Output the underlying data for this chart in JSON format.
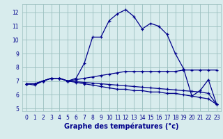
{
  "xlabel": "Graphe des températures (°c)",
  "hours": [
    0,
    1,
    2,
    3,
    4,
    5,
    6,
    7,
    8,
    9,
    10,
    11,
    12,
    13,
    14,
    15,
    16,
    17,
    18,
    19,
    20,
    21,
    22,
    23
  ],
  "temp_main": [
    6.8,
    6.7,
    7.0,
    7.2,
    7.2,
    7.0,
    7.2,
    8.3,
    10.2,
    10.2,
    11.4,
    11.9,
    12.2,
    11.7,
    10.8,
    11.2,
    11.0,
    10.4,
    9.0,
    7.9,
    5.9,
    6.3,
    7.1,
    5.3
  ],
  "temp_line2": [
    6.8,
    6.8,
    7.0,
    7.2,
    7.2,
    7.0,
    7.1,
    7.2,
    7.3,
    7.4,
    7.5,
    7.6,
    7.7,
    7.7,
    7.7,
    7.7,
    7.7,
    7.7,
    7.7,
    7.8,
    7.8,
    7.8,
    7.8,
    7.8
  ],
  "temp_line3": [
    6.8,
    6.8,
    7.0,
    7.2,
    7.2,
    7.0,
    6.9,
    6.8,
    6.7,
    6.6,
    6.5,
    6.4,
    6.4,
    6.3,
    6.3,
    6.2,
    6.2,
    6.1,
    6.1,
    6.0,
    5.9,
    5.8,
    5.7,
    5.3
  ],
  "temp_line4": [
    6.8,
    6.8,
    7.0,
    7.2,
    7.2,
    7.0,
    6.95,
    6.9,
    6.85,
    6.8,
    6.75,
    6.7,
    6.65,
    6.6,
    6.55,
    6.5,
    6.45,
    6.4,
    6.35,
    6.3,
    6.25,
    6.2,
    6.1,
    5.3
  ],
  "bg_color": "#d8eced",
  "line_color": "#00008b",
  "grid_color": "#9bbfbf",
  "ylim": [
    4.8,
    12.6
  ],
  "yticks": [
    5,
    6,
    7,
    8,
    9,
    10,
    11,
    12
  ],
  "xticks": [
    0,
    1,
    2,
    3,
    4,
    5,
    6,
    7,
    8,
    9,
    10,
    11,
    12,
    13,
    14,
    15,
    16,
    17,
    18,
    19,
    20,
    21,
    22,
    23
  ],
  "xlabel_fontsize": 7.0,
  "tick_fontsize": 5.5,
  "linewidth": 0.9,
  "markersize": 3.5
}
